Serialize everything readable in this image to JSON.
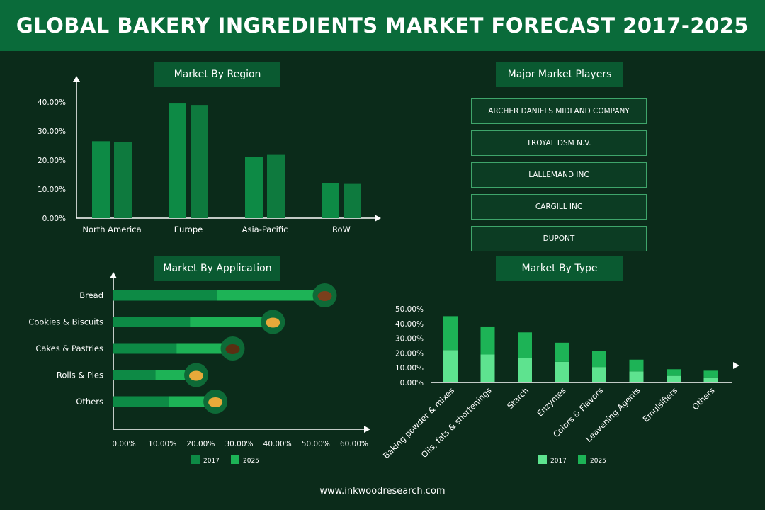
{
  "header": {
    "title": "GLOBAL BAKERY INGREDIENTS MARKET FORECAST 2017-2025"
  },
  "footer": {
    "url": "www.inkwoodresearch.com"
  },
  "players": {
    "title": "Major Market Players",
    "items": [
      "ARCHER DANIELS MIDLAND COMPANY",
      "TROYAL DSM N.V.",
      "LALLEMAND INC",
      "CARGILL INC",
      "DUPONT"
    ]
  },
  "colors": {
    "dark": "#0d8a45",
    "light": "#1db356",
    "pale": "#5ee38f",
    "mid": "#2fc268"
  },
  "chart_data": [
    {
      "type": "bar",
      "title": "Market By Region",
      "categories": [
        "North America",
        "Europe",
        "Asia-Pacific",
        "RoW"
      ],
      "series": [
        {
          "values": [
            26.5,
            39.5,
            21.0,
            12.0
          ]
        },
        {
          "values": [
            26.3,
            39.0,
            21.8,
            11.8
          ]
        }
      ],
      "y_ticks": [
        "40.00%",
        "30.00%",
        "20.00%",
        "10.00%",
        "0.00%"
      ],
      "ylim": [
        0,
        40
      ]
    },
    {
      "type": "bar",
      "orientation": "horizontal",
      "title": "Market By Application",
      "categories": [
        "Bread",
        "Cookies & Biscuits",
        "Cakes & Pastries",
        "Rolls & Pies",
        "Others"
      ],
      "series": [
        {
          "name": "2017",
          "values": [
            27,
            20,
            16.5,
            11,
            14.5
          ]
        },
        {
          "name": "2025",
          "values": [
            54,
            40.5,
            30,
            20.5,
            25.5
          ]
        }
      ],
      "x_ticks": [
        "0.00%",
        "10.00%",
        "20.00%",
        "30.00%",
        "40.00%",
        "50.00%",
        "60.00%"
      ],
      "xlim": [
        0,
        60
      ],
      "icons": [
        "bread-icon",
        "cookie-icon",
        "cake-icon",
        "pie-icon",
        "bun-icon"
      ]
    },
    {
      "type": "bar",
      "stacked": true,
      "title": "Market By Type",
      "categories": [
        "Baking powder & mixes",
        "Oils, fats & shortenings",
        "Starch",
        "Enzymes",
        "Colors & Flavors",
        "Leavening Agents",
        "Emulsifiers",
        "Others"
      ],
      "series": [
        {
          "name": "2017",
          "values": [
            22,
            19,
            16.5,
            14,
            10.5,
            7.5,
            4.5,
            3.5
          ]
        },
        {
          "name": "2025",
          "values": [
            23,
            19,
            17.5,
            13,
            11,
            8,
            4.5,
            4.5
          ]
        }
      ],
      "y_ticks": [
        "50.00%",
        "40.00%",
        "30.00%",
        "20.00%",
        "10.00%",
        "0.00%"
      ],
      "ylim": [
        0,
        50
      ]
    }
  ]
}
